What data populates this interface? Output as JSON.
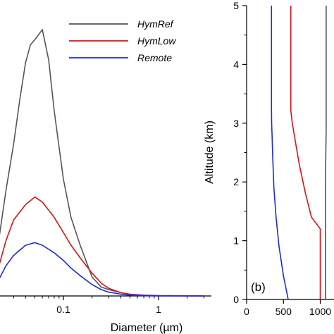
{
  "chart_data": [
    {
      "type": "line",
      "panel": "a",
      "xlabel": "Diameter (µm)",
      "ylabel": "",
      "xscale": "log",
      "x_ticks": [
        {
          "value": 0.1,
          "label": "0.1"
        },
        {
          "value": 1,
          "label": "1"
        }
      ],
      "legend_position": "top-right",
      "series": [
        {
          "name": "HymRef",
          "color": "#555555",
          "points": [
            [
              0.02,
              0.17
            ],
            [
              0.025,
              0.42
            ],
            [
              0.03,
              0.6
            ],
            [
              0.035,
              0.78
            ],
            [
              0.04,
              0.92
            ],
            [
              0.045,
              0.99
            ],
            [
              0.05,
              1.01
            ],
            [
              0.06,
              1.05
            ],
            [
              0.07,
              0.93
            ],
            [
              0.08,
              0.73
            ],
            [
              0.1,
              0.46
            ],
            [
              0.12,
              0.31
            ],
            [
              0.15,
              0.2
            ],
            [
              0.2,
              0.075
            ],
            [
              0.25,
              0.035
            ],
            [
              0.3,
              0.025
            ],
            [
              0.4,
              0.013
            ],
            [
              0.5,
              0.007
            ],
            [
              0.7,
              0.003
            ],
            [
              1.0,
              0.001
            ],
            [
              3.0,
              0.0
            ]
          ]
        },
        {
          "name": "HymLow",
          "color": "#dd1111",
          "points": [
            [
              0.02,
              0.09
            ],
            [
              0.025,
              0.22
            ],
            [
              0.03,
              0.3
            ],
            [
              0.04,
              0.36
            ],
            [
              0.05,
              0.39
            ],
            [
              0.06,
              0.37
            ],
            [
              0.08,
              0.31
            ],
            [
              0.1,
              0.25
            ],
            [
              0.12,
              0.2
            ],
            [
              0.15,
              0.15
            ],
            [
              0.2,
              0.09
            ],
            [
              0.25,
              0.05
            ],
            [
              0.3,
              0.03
            ],
            [
              0.4,
              0.013
            ],
            [
              0.5,
              0.006
            ],
            [
              0.7,
              0.003
            ],
            [
              1.0,
              0.001
            ],
            [
              3.0,
              0.0
            ]
          ]
        },
        {
          "name": "Remote",
          "color": "#1a2bdb",
          "points": [
            [
              0.02,
              0.05
            ],
            [
              0.025,
              0.12
            ],
            [
              0.03,
              0.16
            ],
            [
              0.04,
              0.2
            ],
            [
              0.05,
              0.21
            ],
            [
              0.06,
              0.2
            ],
            [
              0.08,
              0.17
            ],
            [
              0.1,
              0.14
            ],
            [
              0.12,
              0.11
            ],
            [
              0.15,
              0.08
            ],
            [
              0.2,
              0.045
            ],
            [
              0.25,
              0.025
            ],
            [
              0.3,
              0.015
            ],
            [
              0.4,
              0.007
            ],
            [
              0.5,
              0.003
            ],
            [
              0.7,
              0.001
            ],
            [
              1.0,
              0.0
            ],
            [
              3.0,
              0.0
            ]
          ]
        }
      ]
    },
    {
      "type": "line",
      "panel": "b",
      "panel_label": "(b)",
      "xlabel": "",
      "ylabel": "Altitude (km)",
      "ylim": [
        0,
        5
      ],
      "y_ticks": [
        0,
        1,
        2,
        3,
        4,
        5
      ],
      "x_ticks": [
        {
          "value": 0,
          "label": "0"
        },
        {
          "value": 500,
          "label": "500"
        },
        {
          "value": 1000,
          "label": "1000"
        }
      ],
      "series": [
        {
          "name": "HymRef",
          "color": "#555555",
          "points": [
            [
              1070,
              0
            ],
            [
              1070,
              2
            ],
            [
              1080,
              2.9
            ],
            [
              1080,
              3.22
            ],
            [
              1080,
              5
            ]
          ]
        },
        {
          "name": "HymLow",
          "color": "#dd1111",
          "points": [
            [
              1000,
              0
            ],
            [
              1000,
              1.2
            ],
            [
              880,
              1.4
            ],
            [
              800,
              1.8
            ],
            [
              715,
              2.3
            ],
            [
              660,
              2.7
            ],
            [
              620,
              3.0
            ],
            [
              600,
              3.22
            ],
            [
              600,
              5
            ]
          ]
        },
        {
          "name": "Remote",
          "color": "#1a2bdb",
          "points": [
            [
              565,
              0
            ],
            [
              500,
              0.4
            ],
            [
              440,
              0.9
            ],
            [
              400,
              1.4
            ],
            [
              370,
              1.9
            ],
            [
              355,
              2.4
            ],
            [
              345,
              2.8
            ],
            [
              340,
              3.0
            ],
            [
              338,
              3.22
            ],
            [
              338,
              5
            ]
          ]
        }
      ]
    }
  ]
}
